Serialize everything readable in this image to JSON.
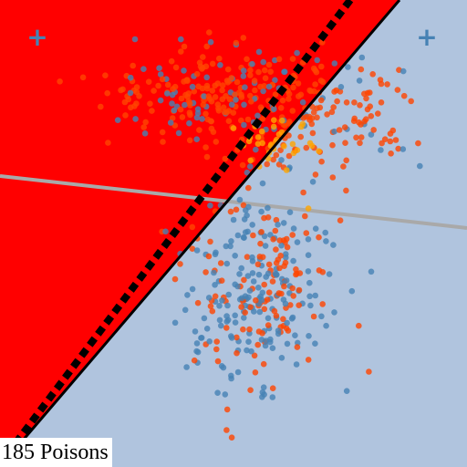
{
  "label": {
    "text": "185 Poisons"
  },
  "regions": {
    "left_color": "#ff0000",
    "right_color": "#b0c4de"
  },
  "lines": {
    "decision_boundary_color": "#000000",
    "poisoned_boundary_color": "#000000",
    "poisoned_boundary_style": "dashed",
    "reference_line_color": "#a9a9a9"
  },
  "markers": [
    {
      "name": "plus-marker-left",
      "color": "#4682b4",
      "glyph": "+"
    },
    {
      "name": "plus-marker-right",
      "color": "#4682b4",
      "glyph": "+"
    }
  ],
  "scatter": {
    "class_a_color": "#4682b4",
    "class_b_color": "#ff4500",
    "poison_color": "#ffa500",
    "point_opacity": 0.8
  }
}
